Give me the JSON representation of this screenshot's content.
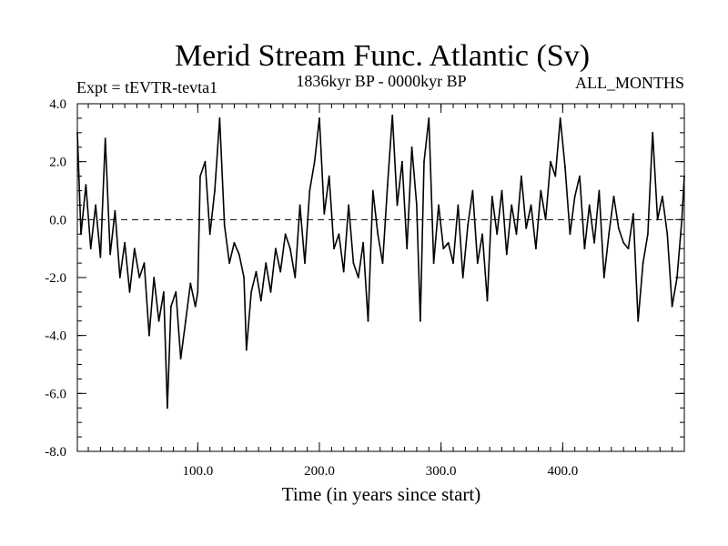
{
  "chart_data": {
    "type": "line",
    "title": "Merid Stream Func. Atlantic (Sv)",
    "subtitle_left": "Expt = tEVTR-tevta1",
    "subtitle_center": "1836kyr BP - 0000kyr BP",
    "subtitle_right": "ALL_MONTHS",
    "xlabel": "Time (in years since start)",
    "ylabel": "",
    "xlim": [
      1,
      500
    ],
    "ylim": [
      -8,
      4
    ],
    "xticks": [
      {
        "value": 100,
        "label": "100.0"
      },
      {
        "value": 200,
        "label": "200.0"
      },
      {
        "value": 300,
        "label": "300.0"
      },
      {
        "value": 400,
        "label": "400.0"
      }
    ],
    "yticks": [
      {
        "value": 4,
        "label": "4.0"
      },
      {
        "value": 2,
        "label": "2.0"
      },
      {
        "value": 0,
        "label": "0.0"
      },
      {
        "value": -2,
        "label": "-2.0"
      },
      {
        "value": -4,
        "label": "-4.0"
      },
      {
        "value": -6,
        "label": "-6.0"
      },
      {
        "value": -8,
        "label": "-8.0"
      }
    ],
    "reference_line": {
      "y": 0,
      "style": "dashed"
    },
    "series": [
      {
        "name": "Merid Stream Func. Atlantic",
        "x": [
          1,
          4,
          8,
          12,
          16,
          20,
          24,
          28,
          32,
          36,
          40,
          44,
          48,
          52,
          56,
          60,
          64,
          68,
          72,
          75,
          78,
          82,
          86,
          90,
          94,
          98,
          100,
          102,
          106,
          110,
          114,
          118,
          122,
          126,
          130,
          134,
          138,
          140,
          144,
          148,
          152,
          156,
          160,
          164,
          168,
          172,
          176,
          180,
          184,
          188,
          192,
          196,
          200,
          204,
          208,
          212,
          216,
          220,
          224,
          228,
          232,
          236,
          240,
          244,
          248,
          252,
          256,
          260,
          264,
          268,
          272,
          276,
          280,
          283,
          286,
          290,
          294,
          298,
          302,
          306,
          310,
          314,
          318,
          322,
          326,
          330,
          334,
          338,
          342,
          346,
          350,
          354,
          358,
          362,
          366,
          370,
          374,
          378,
          382,
          386,
          390,
          394,
          398,
          402,
          406,
          410,
          414,
          418,
          422,
          426,
          430,
          434,
          438,
          442,
          446,
          450,
          454,
          458,
          462,
          466,
          470,
          474,
          478,
          482,
          486,
          490,
          494,
          498,
          500
        ],
        "values": [
          3.0,
          -0.5,
          1.2,
          -1.0,
          0.5,
          -1.3,
          2.8,
          -1.2,
          0.3,
          -2.0,
          -0.8,
          -2.5,
          -1.0,
          -2.0,
          -1.5,
          -4.0,
          -2.0,
          -3.5,
          -2.5,
          -6.5,
          -3.0,
          -2.5,
          -4.8,
          -3.5,
          -2.2,
          -3.0,
          -2.5,
          1.5,
          2.0,
          -0.5,
          1.0,
          3.5,
          -0.2,
          -1.5,
          -0.8,
          -1.2,
          -2.0,
          -4.5,
          -2.5,
          -1.8,
          -2.8,
          -1.5,
          -2.5,
          -1.0,
          -1.8,
          -0.5,
          -1.0,
          -2.0,
          0.5,
          -1.5,
          1.0,
          2.0,
          3.5,
          0.2,
          1.5,
          -1.0,
          -0.5,
          -1.8,
          0.5,
          -1.5,
          -2.0,
          -0.8,
          -3.5,
          1.0,
          -0.5,
          -1.5,
          1.2,
          3.6,
          0.5,
          2.0,
          -1.0,
          2.5,
          0.5,
          -3.5,
          2.0,
          3.5,
          -1.5,
          0.5,
          -1.0,
          -0.8,
          -1.5,
          0.5,
          -2.0,
          -0.2,
          1.0,
          -1.5,
          -0.5,
          -2.8,
          0.8,
          -0.5,
          1.0,
          -1.2,
          0.5,
          -0.5,
          1.5,
          -0.3,
          0.5,
          -1.0,
          1.0,
          0.0,
          2.0,
          1.5,
          3.5,
          1.8,
          -0.5,
          0.8,
          1.5,
          -1.0,
          0.5,
          -0.8,
          1.0,
          -2.0,
          -0.5,
          0.8,
          -0.3,
          -0.8,
          -1.0,
          0.2,
          -3.5,
          -1.5,
          -0.5,
          3.0,
          0.0,
          0.8,
          -0.5,
          -3.0,
          -2.0,
          0.0,
          1.5
        ]
      }
    ]
  }
}
